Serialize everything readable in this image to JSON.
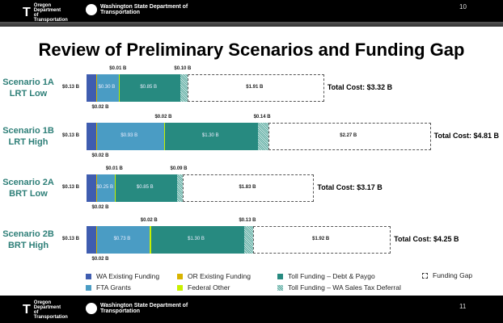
{
  "header": {
    "org1": "Oregon Department of Transportation",
    "org2": "Washington State Department of Transportation",
    "page_top": "10",
    "page_bottom": "11"
  },
  "chart_data": {
    "type": "bar",
    "orientation": "horizontal",
    "stacked": true,
    "title": "Review of Preliminary Scenarios and Funding Gap",
    "unit": "$ B",
    "series_names": [
      "WA Existing Funding",
      "OR Existing Funding",
      "FTA Grants",
      "Federal Other",
      "Toll Funding – Debt & Paygo",
      "Toll Funding – WA Sales Tax Deferral",
      "Funding Gap"
    ],
    "colors": [
      "#3f5db0",
      "#d8b400",
      "#4a9cc4",
      "#c8f000",
      "#278a80",
      "hatch",
      "#ffffff"
    ],
    "categories": [
      {
        "name": "Scenario 1A",
        "sub": "LRT Low",
        "values": [
          0.13,
          0.02,
          0.3,
          0.01,
          0.85,
          0.1,
          1.91
        ],
        "labels": [
          "$0.13 B",
          "$0.02 B",
          "$0.30 B",
          "$0.01 B",
          "$0.85 B",
          "$0.10 B",
          "$1.91 B"
        ],
        "total": "Total Cost: $3.32 B"
      },
      {
        "name": "Scenario 1B",
        "sub": "LRT High",
        "values": [
          0.13,
          0.02,
          0.93,
          0.02,
          1.3,
          0.14,
          2.27
        ],
        "labels": [
          "$0.13 B",
          "$0.02 B",
          "$0.93 B",
          "$0.02 B",
          "$1.30 B",
          "$0.14 B",
          "$2.27 B"
        ],
        "total": "Total Cost: $4.81 B"
      },
      {
        "name": "Scenario 2A",
        "sub": "BRT Low",
        "values": [
          0.13,
          0.02,
          0.25,
          0.01,
          0.85,
          0.09,
          1.83
        ],
        "labels": [
          "$0.13 B",
          "$0.02 B",
          "$0.25 B",
          "$0.01 B",
          "$0.85 B",
          "$0.09 B",
          "$1.83 B"
        ],
        "total": "Total Cost: $3.17 B"
      },
      {
        "name": "Scenario 2B",
        "sub": "BRT High",
        "values": [
          0.13,
          0.02,
          0.73,
          0.02,
          1.3,
          0.13,
          1.92
        ],
        "labels": [
          "$0.13 B",
          "$0.02 B",
          "$0.73 B",
          "$0.02 B",
          "$1.30 B",
          "$0.13 B",
          "$1.92 B"
        ],
        "total": "Total Cost: $4.25 B"
      }
    ],
    "legend_placement": "bottom"
  }
}
